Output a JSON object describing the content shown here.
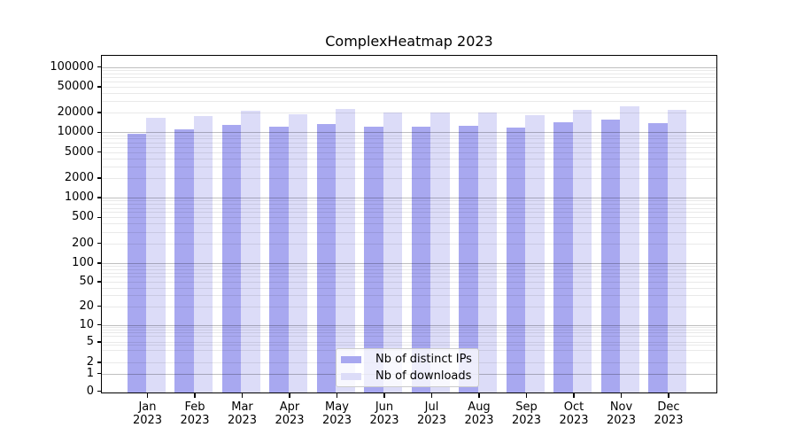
{
  "title": "ComplexHeatmap 2023",
  "legend": {
    "items": [
      {
        "label": "Nb of distinct IPs",
        "color": "#a8a8f0"
      },
      {
        "label": "Nb of downloads",
        "color": "#dcdcf8"
      }
    ]
  },
  "chart_data": {
    "type": "bar",
    "title": "ComplexHeatmap 2023",
    "categories": [
      "Jan 2023",
      "Feb 2023",
      "Mar 2023",
      "Apr 2023",
      "May 2023",
      "Jun 2023",
      "Jul 2023",
      "Aug 2023",
      "Sep 2023",
      "Oct 2023",
      "Nov 2023",
      "Dec 2023"
    ],
    "series": [
      {
        "name": "Nb of distinct IPs",
        "color": "#a8a8f0",
        "values": [
          9600,
          11100,
          13000,
          12000,
          13500,
          12200,
          12200,
          12600,
          11900,
          14400,
          15700,
          13900
        ]
      },
      {
        "name": "Nb of downloads",
        "color": "#dcdcf8",
        "values": [
          16500,
          17800,
          21300,
          19000,
          23000,
          19800,
          20000,
          20300,
          18300,
          22100,
          24900,
          21800
        ]
      }
    ],
    "yscale": "symlog",
    "ylim": [
      0,
      150000
    ],
    "yticks": [
      {
        "value": 0,
        "label": "0"
      },
      {
        "value": 1,
        "label": "1"
      },
      {
        "value": 2,
        "label": "2"
      },
      {
        "value": 5,
        "label": "5"
      },
      {
        "value": 10,
        "label": "10"
      },
      {
        "value": 20,
        "label": "20"
      },
      {
        "value": 50,
        "label": "50"
      },
      {
        "value": 100,
        "label": "100"
      },
      {
        "value": 200,
        "label": "200"
      },
      {
        "value": 500,
        "label": "500"
      },
      {
        "value": 1000,
        "label": "1000"
      },
      {
        "value": 2000,
        "label": "2000"
      },
      {
        "value": 5000,
        "label": "5000"
      },
      {
        "value": 10000,
        "label": "10000"
      },
      {
        "value": 20000,
        "label": "20000"
      },
      {
        "value": 50000,
        "label": "50000"
      },
      {
        "value": 100000,
        "label": "100000"
      }
    ],
    "grid": true,
    "legend_position": "lower center",
    "xlabel": "",
    "ylabel": ""
  }
}
